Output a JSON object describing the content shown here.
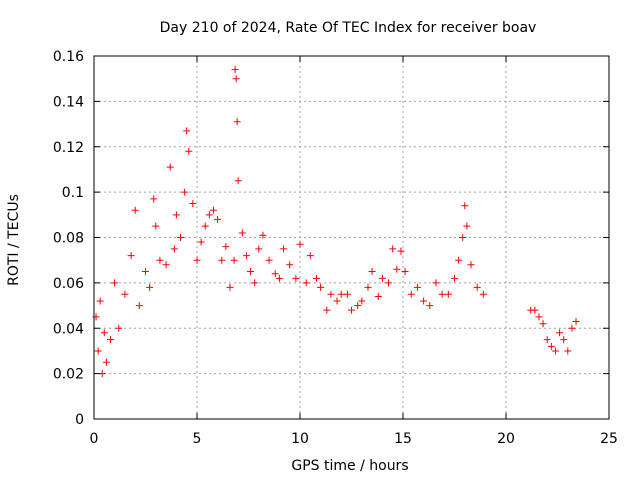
{
  "chart_data": {
    "type": "scatter",
    "title": "Day 210 of 2024, Rate Of TEC Index for receiver boav",
    "xlabel": "GPS time / hours",
    "ylabel": "ROTI / TECUs",
    "xlim": [
      0,
      25
    ],
    "ylim": [
      0,
      0.16
    ],
    "x_ticks": [
      "0",
      "5",
      "10",
      "15",
      "20",
      "25"
    ],
    "y_ticks": [
      "0",
      "0.02",
      "0.04",
      "0.06",
      "0.08",
      "0.1",
      "0.12",
      "0.14",
      "0.16"
    ],
    "grid": true,
    "marker": "plus",
    "color": "#ff0000",
    "series": [
      {
        "x": [
          0.1,
          0.2,
          0.3,
          0.4,
          0.5,
          0.6,
          0.8,
          1.0,
          1.2,
          1.5,
          1.8,
          2.0,
          2.2,
          2.5,
          2.7,
          2.9,
          3.0,
          3.2,
          3.5,
          3.7,
          3.9,
          4.0,
          4.2,
          4.4,
          4.5,
          4.6,
          4.8,
          5.0,
          5.2,
          5.4,
          5.6,
          5.8,
          6.0,
          6.2,
          6.4,
          6.6,
          6.8,
          6.85,
          6.9,
          6.95,
          7.0,
          7.2,
          7.4,
          7.6,
          7.8,
          8.0,
          8.2,
          8.5,
          8.8,
          9.0,
          9.2,
          9.5,
          9.8,
          10.0,
          10.3,
          10.5,
          10.8,
          11.0,
          11.3,
          11.5,
          11.8,
          12.0,
          12.3,
          12.5,
          12.8,
          13.0,
          13.3,
          13.5,
          13.8,
          14.0,
          14.3,
          14.5,
          14.7,
          14.9,
          15.1,
          15.4,
          15.7,
          16.0,
          16.3,
          16.6,
          16.9,
          17.2,
          17.5,
          17.7,
          17.9,
          18.0,
          18.1,
          18.3,
          18.6,
          18.9,
          21.2,
          21.4,
          21.6,
          21.8,
          22.0,
          22.2,
          22.4,
          22.6,
          22.8,
          23.0,
          23.2,
          23.4
        ],
        "y": [
          0.045,
          0.03,
          0.052,
          0.02,
          0.038,
          0.025,
          0.035,
          0.06,
          0.04,
          0.055,
          0.072,
          0.092,
          0.05,
          0.065,
          0.058,
          0.097,
          0.085,
          0.07,
          0.068,
          0.111,
          0.075,
          0.09,
          0.08,
          0.1,
          0.127,
          0.118,
          0.095,
          0.07,
          0.078,
          0.085,
          0.09,
          0.092,
          0.088,
          0.07,
          0.076,
          0.058,
          0.07,
          0.154,
          0.15,
          0.131,
          0.105,
          0.082,
          0.072,
          0.065,
          0.06,
          0.075,
          0.081,
          0.07,
          0.064,
          0.062,
          0.075,
          0.068,
          0.062,
          0.077,
          0.06,
          0.072,
          0.062,
          0.058,
          0.048,
          0.055,
          0.052,
          0.055,
          0.055,
          0.048,
          0.05,
          0.052,
          0.058,
          0.065,
          0.054,
          0.062,
          0.06,
          0.075,
          0.066,
          0.074,
          0.065,
          0.055,
          0.058,
          0.052,
          0.05,
          0.06,
          0.055,
          0.055,
          0.062,
          0.07,
          0.08,
          0.094,
          0.085,
          0.068,
          0.058,
          0.055,
          0.048,
          0.048,
          0.045,
          0.042,
          0.035,
          0.032,
          0.03,
          0.038,
          0.035,
          0.03,
          0.04,
          0.043
        ]
      }
    ]
  }
}
